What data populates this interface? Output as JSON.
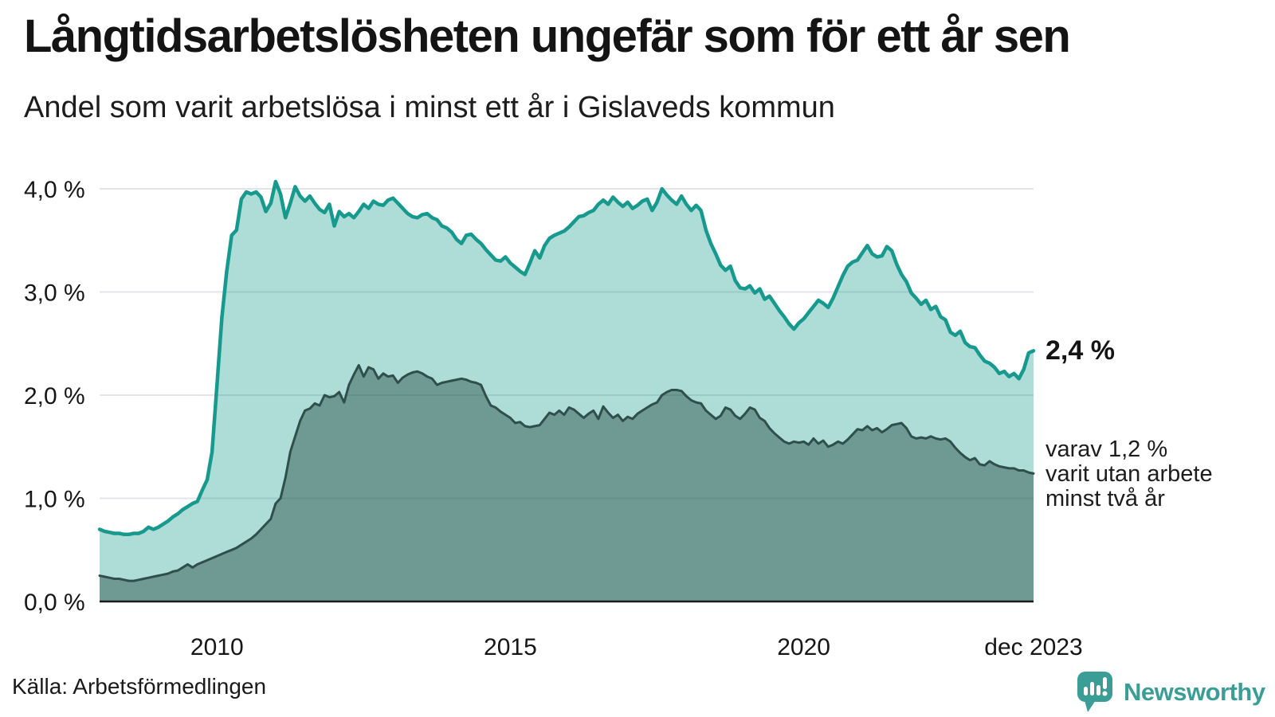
{
  "header": {
    "title": "Långtidsarbetslösheten ungefär som för ett år sen",
    "subtitle": "Andel som varit arbetslösa i minst ett år i Gislaveds kommun"
  },
  "annotations": {
    "end_value_label": "2,4 %",
    "inner_note": "varav 1,2 %\nvarit utan arbete\nminst två år"
  },
  "footer": {
    "source": "Källa: Arbetsförmedlingen",
    "brand": "Newsworthy"
  },
  "colors": {
    "line_outer": "#179a8d",
    "fill_outer": "rgba(23,154,141,0.35)",
    "line_inner": "#2f4f4b",
    "fill_inner": "rgba(47,85,80,0.50)",
    "grid": "#e3e4e8",
    "axis": "#1a1a1a",
    "text": "#161616",
    "brand_teal": "#3b9e96"
  },
  "chart_data": {
    "type": "area",
    "title": "Långtidsarbetslösheten ungefär som för ett år sen",
    "subtitle": "Andel som varit arbetslösa i minst ett år i Gislaveds kommun",
    "x_unit": "month",
    "x_start": "2008-01",
    "x_end": "2023-12",
    "ylim": [
      0,
      4.3
    ],
    "grid": "horizontal",
    "y_ticks": [
      {
        "label": "0,0 %",
        "value": 0
      },
      {
        "label": "1,0 %",
        "value": 1
      },
      {
        "label": "2,0 %",
        "value": 2
      },
      {
        "label": "3,0 %",
        "value": 3
      },
      {
        "label": "4,0 %",
        "value": 4
      }
    ],
    "x_ticks": [
      {
        "label": "2010",
        "month_index": 24
      },
      {
        "label": "2015",
        "month_index": 84
      },
      {
        "label": "2020",
        "month_index": 144
      },
      {
        "label": "dec 2023",
        "month_index": 191
      }
    ],
    "series": [
      {
        "name": "Andel arbetslösa minst ett år",
        "end_value": 2.4,
        "values": [
          0.7,
          0.68,
          0.67,
          0.66,
          0.66,
          0.65,
          0.65,
          0.66,
          0.66,
          0.68,
          0.72,
          0.7,
          0.72,
          0.75,
          0.78,
          0.82,
          0.85,
          0.89,
          0.92,
          0.95,
          0.97,
          1.08,
          1.18,
          1.45,
          2.1,
          2.75,
          3.2,
          3.55,
          3.6,
          3.9,
          3.97,
          3.95,
          3.97,
          3.92,
          3.78,
          3.86,
          4.07,
          3.95,
          3.72,
          3.86,
          4.02,
          3.93,
          3.88,
          3.93,
          3.86,
          3.8,
          3.77,
          3.85,
          3.64,
          3.78,
          3.73,
          3.76,
          3.72,
          3.78,
          3.85,
          3.81,
          3.88,
          3.85,
          3.84,
          3.89,
          3.91,
          3.86,
          3.81,
          3.76,
          3.73,
          3.72,
          3.75,
          3.76,
          3.72,
          3.7,
          3.64,
          3.62,
          3.58,
          3.51,
          3.47,
          3.55,
          3.56,
          3.51,
          3.47,
          3.41,
          3.36,
          3.31,
          3.3,
          3.34,
          3.28,
          3.24,
          3.2,
          3.17,
          3.28,
          3.4,
          3.33,
          3.45,
          3.52,
          3.55,
          3.57,
          3.59,
          3.63,
          3.68,
          3.73,
          3.74,
          3.77,
          3.79,
          3.85,
          3.89,
          3.85,
          3.92,
          3.87,
          3.83,
          3.87,
          3.81,
          3.84,
          3.88,
          3.9,
          3.79,
          3.87,
          4.0,
          3.94,
          3.89,
          3.85,
          3.93,
          3.85,
          3.79,
          3.84,
          3.79,
          3.6,
          3.47,
          3.37,
          3.26,
          3.21,
          3.25,
          3.11,
          3.04,
          3.03,
          3.06,
          2.99,
          3.03,
          2.93,
          2.96,
          2.89,
          2.82,
          2.76,
          2.69,
          2.64,
          2.7,
          2.74,
          2.8,
          2.86,
          2.92,
          2.89,
          2.85,
          2.94,
          3.05,
          3.16,
          3.25,
          3.29,
          3.31,
          3.38,
          3.45,
          3.37,
          3.34,
          3.35,
          3.44,
          3.4,
          3.27,
          3.17,
          3.1,
          2.99,
          2.94,
          2.88,
          2.92,
          2.83,
          2.86,
          2.76,
          2.73,
          2.61,
          2.58,
          2.62,
          2.51,
          2.47,
          2.46,
          2.39,
          2.33,
          2.31,
          2.27,
          2.21,
          2.23,
          2.18,
          2.21,
          2.16,
          2.25,
          2.41,
          2.43
        ]
      },
      {
        "name": "varav arbetslösa minst två år",
        "end_value": 1.2,
        "values": [
          0.25,
          0.24,
          0.23,
          0.22,
          0.22,
          0.21,
          0.2,
          0.2,
          0.21,
          0.22,
          0.23,
          0.24,
          0.25,
          0.26,
          0.27,
          0.29,
          0.3,
          0.33,
          0.36,
          0.33,
          0.36,
          0.38,
          0.4,
          0.42,
          0.44,
          0.46,
          0.48,
          0.5,
          0.52,
          0.55,
          0.58,
          0.61,
          0.65,
          0.7,
          0.75,
          0.8,
          0.95,
          1.0,
          1.2,
          1.45,
          1.6,
          1.75,
          1.85,
          1.87,
          1.92,
          1.9,
          2.0,
          1.98,
          1.99,
          2.03,
          1.93,
          2.1,
          2.2,
          2.29,
          2.18,
          2.27,
          2.25,
          2.16,
          2.21,
          2.18,
          2.19,
          2.12,
          2.17,
          2.2,
          2.22,
          2.23,
          2.21,
          2.18,
          2.16,
          2.1,
          2.12,
          2.13,
          2.14,
          2.15,
          2.16,
          2.15,
          2.13,
          2.12,
          2.1,
          1.99,
          1.9,
          1.88,
          1.84,
          1.81,
          1.78,
          1.73,
          1.74,
          1.7,
          1.69,
          1.7,
          1.71,
          1.77,
          1.83,
          1.81,
          1.85,
          1.81,
          1.88,
          1.86,
          1.82,
          1.78,
          1.82,
          1.85,
          1.77,
          1.89,
          1.83,
          1.78,
          1.81,
          1.75,
          1.79,
          1.77,
          1.82,
          1.85,
          1.88,
          1.91,
          1.93,
          2.0,
          2.03,
          2.05,
          2.05,
          2.04,
          1.99,
          1.95,
          1.93,
          1.92,
          1.85,
          1.81,
          1.77,
          1.8,
          1.88,
          1.86,
          1.8,
          1.77,
          1.82,
          1.88,
          1.86,
          1.78,
          1.75,
          1.68,
          1.63,
          1.59,
          1.55,
          1.53,
          1.55,
          1.54,
          1.55,
          1.52,
          1.58,
          1.53,
          1.56,
          1.5,
          1.52,
          1.55,
          1.53,
          1.57,
          1.62,
          1.67,
          1.66,
          1.7,
          1.66,
          1.68,
          1.64,
          1.67,
          1.71,
          1.72,
          1.73,
          1.68,
          1.6,
          1.58,
          1.59,
          1.58,
          1.6,
          1.58,
          1.57,
          1.58,
          1.55,
          1.49,
          1.44,
          1.4,
          1.37,
          1.39,
          1.33,
          1.32,
          1.36,
          1.33,
          1.31,
          1.3,
          1.29,
          1.29,
          1.27,
          1.27,
          1.25,
          1.24
        ]
      }
    ]
  }
}
